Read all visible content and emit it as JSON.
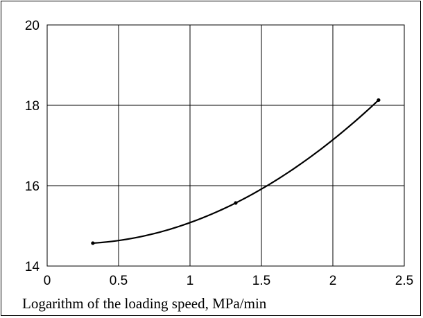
{
  "chart_data": {
    "type": "line",
    "title": "",
    "xlabel": "Logarithm of the loading speed, MPa/min",
    "ylabel": "",
    "xlim": [
      0,
      2.5
    ],
    "ylim": [
      14,
      20
    ],
    "x_ticks": [
      0,
      0.5,
      1,
      1.5,
      2,
      2.5
    ],
    "y_ticks": [
      14,
      16,
      18,
      20
    ],
    "x_tick_labels": [
      "0",
      "0.5",
      "1",
      "1.5",
      "2",
      "2.5"
    ],
    "y_tick_labels": [
      "14",
      "16",
      "18",
      "20"
    ],
    "grid": true,
    "legend": "none",
    "series": [
      {
        "x": [
          0.32,
          1.32,
          2.32
        ],
        "y": [
          14.57,
          15.57,
          18.13
        ],
        "color": "#000000",
        "markers": true
      }
    ]
  }
}
